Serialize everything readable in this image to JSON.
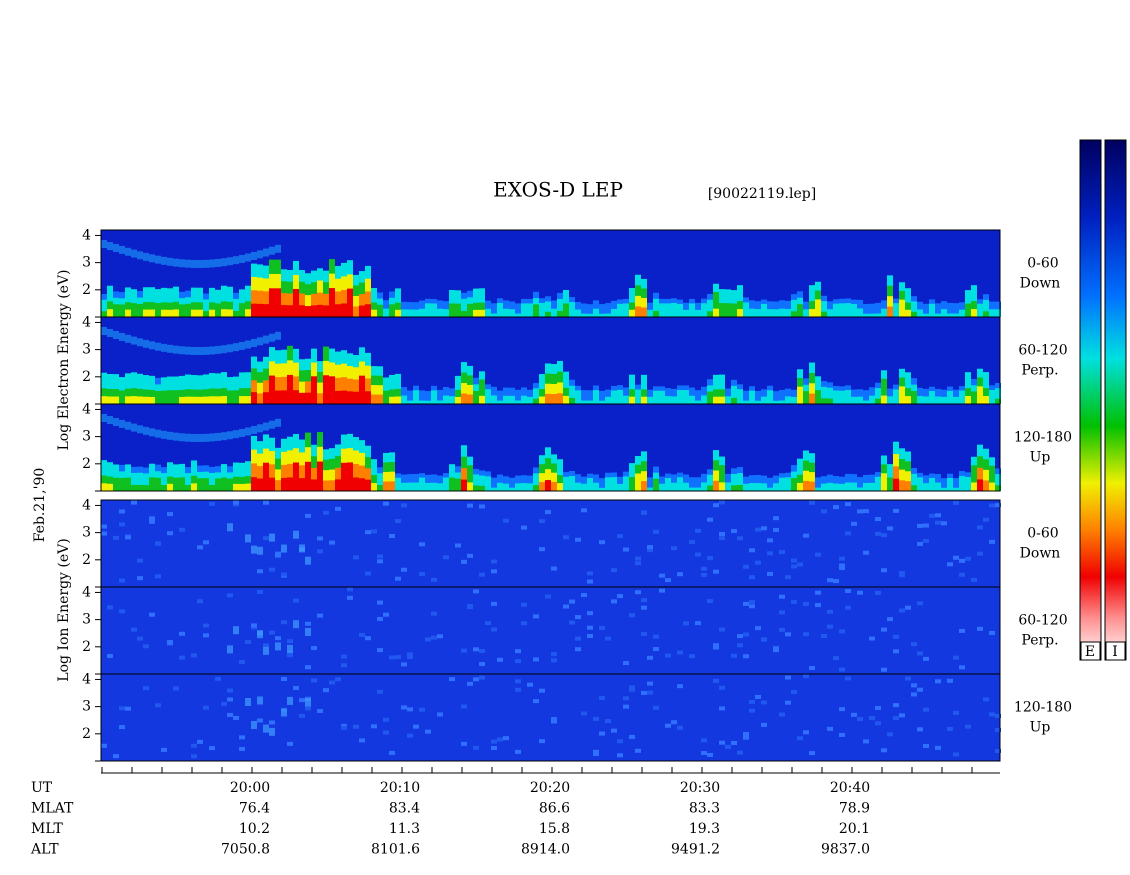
{
  "title": "EXOS-D LEP",
  "file": "[90022119.lep]",
  "date": "Feb.21,'90",
  "electron_axis_label": "Log Electron Energy (eV)",
  "ion_axis_label": "Log Ion Energy (eV)",
  "energy_ticks": [
    "2",
    "3",
    "4"
  ],
  "electron_panels": [
    {
      "range": "0-60",
      "direction": "Down"
    },
    {
      "range": "60-120",
      "direction": "Perp."
    },
    {
      "range": "120-180",
      "direction": "Up"
    }
  ],
  "ion_panels": [
    {
      "range": "0-60",
      "direction": "Down"
    },
    {
      "range": "60-120",
      "direction": "Perp."
    },
    {
      "range": "120-180",
      "direction": "Up"
    }
  ],
  "ephemeris": {
    "row_labels": [
      "UT",
      "MLAT",
      "MLT",
      "ALT"
    ],
    "columns": [
      [
        "20:00",
        "76.4",
        "10.2",
        "7050.8"
      ],
      [
        "20:10",
        "83.4",
        "11.3",
        "8101.6"
      ],
      [
        "20:20",
        "86.6",
        "15.8",
        "8914.0"
      ],
      [
        "20:30",
        "83.3",
        "19.3",
        "9491.2"
      ],
      [
        "20:40",
        "78.9",
        "20.1",
        "9837.0"
      ]
    ]
  },
  "colorbar_labels": [
    "E",
    "I"
  ]
}
